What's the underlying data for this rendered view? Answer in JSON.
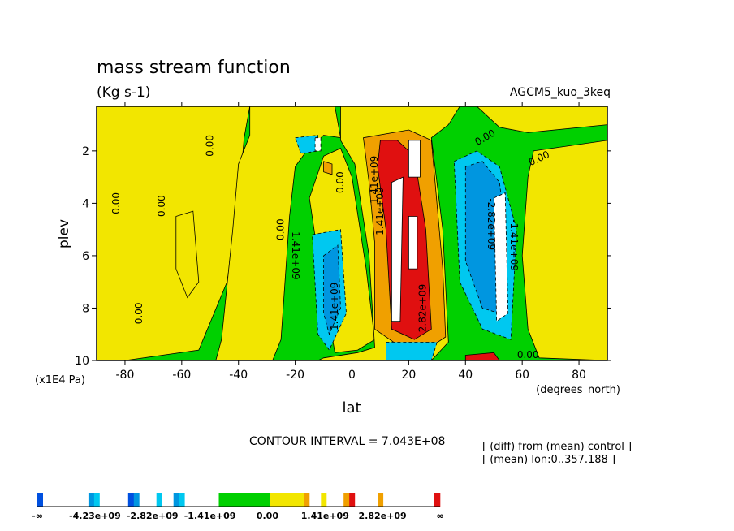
{
  "chart_data": {
    "type": "heatmap",
    "title": "mass stream function",
    "subtitle": "(Kg s-1)",
    "experiment": "AGCM5_kuo_3keq",
    "xlabel": "lat",
    "x_units": "(degrees_north)",
    "ylabel": "plev",
    "y_units": "(x1E4 Pa)",
    "xlim": [
      -90,
      90
    ],
    "ylim": [
      0.3,
      10
    ],
    "y_inverted": true,
    "x_ticks": [
      -80,
      -60,
      -40,
      -20,
      0,
      20,
      40,
      60,
      80
    ],
    "y_ticks": [
      2,
      4,
      6,
      8,
      10
    ],
    "contour_interval_text": "CONTOUR INTERVAL = 7.043E+08",
    "contour_interval": 704300000,
    "notes": [
      "[ (diff) from (mean) control ]",
      "[ (mean) lon:0..357.188 ]"
    ],
    "contour_labels": [
      {
        "text": "0.00",
        "lat": -83,
        "plev": 4.0,
        "rotate": -90
      },
      {
        "text": "0.00",
        "lat": -67,
        "plev": 4.1,
        "rotate": -90
      },
      {
        "text": "0.00",
        "lat": -50,
        "plev": 1.8,
        "rotate": -90
      },
      {
        "text": "0.00",
        "lat": -75,
        "plev": 8.2,
        "rotate": -90
      },
      {
        "text": "0.00",
        "lat": -25,
        "plev": 5.0,
        "rotate": -90
      },
      {
        "text": "1.41e+09",
        "lat": -20,
        "plev": 6.0,
        "rotate": 90
      },
      {
        "text": "0.00",
        "lat": -4,
        "plev": 3.2,
        "rotate": -90
      },
      {
        "text": "-1.41e+09",
        "lat": -6,
        "plev": 8.0,
        "rotate": -90
      },
      {
        "text": "1.41e+09",
        "lat": 10,
        "plev": 4.3,
        "rotate": -90
      },
      {
        "text": "1.41e+09",
        "lat": 8,
        "plev": 3.1,
        "rotate": -90
      },
      {
        "text": "2.82e+09",
        "lat": 25,
        "plev": 8.0,
        "rotate": -90
      },
      {
        "text": "0.00",
        "lat": 47,
        "plev": 1.5,
        "rotate": -30
      },
      {
        "text": "0.00",
        "lat": 66,
        "plev": 2.3,
        "rotate": -25
      },
      {
        "text": "-2.82e+09",
        "lat": 49,
        "plev": 4.8,
        "rotate": 90
      },
      {
        "text": "-1.41e+09",
        "lat": 57,
        "plev": 5.6,
        "rotate": 90
      },
      {
        "text": "0.00",
        "lat": 62,
        "plev": 9.8,
        "rotate": 0
      }
    ],
    "fill_regions": [
      {
        "level": "pos1",
        "color": "#f2e600",
        "points": [
          [
            -90,
            0.3
          ],
          [
            -36,
            0.3
          ],
          [
            -38,
            1.5
          ],
          [
            -40,
            4
          ],
          [
            -44,
            7
          ],
          [
            -54,
            9.6
          ],
          [
            -80,
            10
          ],
          [
            -90,
            10
          ]
        ]
      },
      {
        "level": "pos1",
        "color": "#f2e600",
        "points": [
          [
            -36,
            0.3
          ],
          [
            -6,
            0.3
          ],
          [
            -4,
            1.5
          ],
          [
            -10,
            1.4
          ],
          [
            -16,
            2.0
          ],
          [
            -20,
            2.6
          ],
          [
            -22,
            4.5
          ],
          [
            -25,
            9.2
          ],
          [
            -28,
            10
          ],
          [
            -48,
            10
          ],
          [
            -46,
            9.2
          ],
          [
            -42,
            5
          ],
          [
            -40,
            2.5
          ],
          [
            -36,
            1.4
          ]
        ]
      },
      {
        "level": "pos1",
        "color": "#f2e600",
        "points": [
          [
            -10,
            2.2
          ],
          [
            -4,
            1.9
          ],
          [
            0,
            3.0
          ],
          [
            5,
            6.5
          ],
          [
            8,
            9.2
          ],
          [
            2,
            9.6
          ],
          [
            -6,
            9.7
          ],
          [
            -12,
            6
          ],
          [
            -15,
            3.8
          ]
        ]
      },
      {
        "level": "pos1",
        "color": "#f2e600",
        "points": [
          [
            -4,
            0.3
          ],
          [
            38,
            0.3
          ],
          [
            34,
            1.0
          ],
          [
            28,
            1.5
          ],
          [
            32,
            5
          ],
          [
            34,
            9.3
          ],
          [
            28,
            10
          ],
          [
            -12,
            10
          ],
          [
            -10,
            9.9
          ],
          [
            2,
            9.7
          ],
          [
            8,
            9.5
          ],
          [
            6,
            6
          ],
          [
            1,
            2.5
          ],
          [
            -4,
            1.6
          ]
        ]
      },
      {
        "level": "pos1",
        "color": "#f2e600",
        "points": [
          [
            44,
            0.3
          ],
          [
            90,
            0.3
          ],
          [
            90,
            1.0
          ],
          [
            62,
            1.3
          ],
          [
            52,
            1.1
          ]
        ]
      },
      {
        "level": "pos1",
        "color": "#f2e600",
        "points": [
          [
            64,
            2.0
          ],
          [
            90,
            1.6
          ],
          [
            90,
            10
          ],
          [
            66,
            9.9
          ],
          [
            62,
            8.8
          ],
          [
            60,
            6
          ],
          [
            62,
            3
          ]
        ]
      },
      {
        "level": "pos1",
        "color": "#f2e600",
        "points": [
          [
            -62,
            4.5
          ],
          [
            -56,
            4.3
          ],
          [
            -54,
            7
          ],
          [
            -58,
            7.6
          ],
          [
            -62,
            6.5
          ]
        ]
      },
      {
        "level": "pos2",
        "color": "#f0a000",
        "points": [
          [
            4,
            1.5
          ],
          [
            20,
            1.2
          ],
          [
            28,
            1.6
          ],
          [
            32,
            6.5
          ],
          [
            33,
            9.1
          ],
          [
            26,
            9.6
          ],
          [
            16,
            9.4
          ],
          [
            8,
            8.8
          ],
          [
            8,
            5.5
          ],
          [
            6,
            3.2
          ]
        ]
      },
      {
        "level": "pos2",
        "color": "#f0a000",
        "points": [
          [
            -10,
            2.4
          ],
          [
            -7,
            2.5
          ],
          [
            -7,
            2.9
          ],
          [
            -10,
            2.8
          ]
        ]
      },
      {
        "level": "pos3",
        "color": "#e01010",
        "points": [
          [
            10,
            1.6
          ],
          [
            16,
            1.6
          ],
          [
            22,
            2.2
          ],
          [
            26,
            5
          ],
          [
            28,
            8.8
          ],
          [
            22,
            9.2
          ],
          [
            14,
            8.8
          ],
          [
            12,
            5
          ],
          [
            9,
            2.6
          ]
        ]
      },
      {
        "level": "pos3",
        "color": "#e01010",
        "points": [
          [
            40,
            9.8
          ],
          [
            50,
            9.7
          ],
          [
            52,
            10
          ],
          [
            40,
            10
          ]
        ]
      },
      {
        "level": "pos4",
        "color": "#ffffff",
        "points": [
          [
            14,
            3.2
          ],
          [
            18,
            3.0
          ],
          [
            17,
            8.5
          ],
          [
            14,
            8.5
          ]
        ]
      },
      {
        "level": "pos4",
        "color": "#ffffff",
        "points": [
          [
            20,
            1.6
          ],
          [
            24,
            1.6
          ],
          [
            24,
            3.0
          ],
          [
            20,
            3.0
          ]
        ]
      },
      {
        "level": "pos4",
        "color": "#ffffff",
        "points": [
          [
            20,
            4.5
          ],
          [
            23,
            4.5
          ],
          [
            23,
            6.5
          ],
          [
            20,
            6.5
          ]
        ]
      },
      {
        "level": "neg2",
        "color": "#00c8f0",
        "points": [
          [
            36,
            2.4
          ],
          [
            44,
            2.0
          ],
          [
            52,
            2.6
          ],
          [
            58,
            5
          ],
          [
            56,
            9.2
          ],
          [
            46,
            8.8
          ],
          [
            38,
            7
          ]
        ]
      },
      {
        "level": "neg3",
        "color": "#0096e0",
        "points": [
          [
            40,
            2.6
          ],
          [
            46,
            2.4
          ],
          [
            52,
            3.2
          ],
          [
            54,
            5
          ],
          [
            52,
            8.2
          ],
          [
            46,
            8.0
          ],
          [
            40,
            6.2
          ]
        ]
      },
      {
        "level": "neg4",
        "color": "#ffffff",
        "points": [
          [
            50,
            3.8
          ],
          [
            54,
            3.6
          ],
          [
            55,
            8.2
          ],
          [
            51,
            8.5
          ]
        ]
      },
      {
        "level": "neg2",
        "color": "#00c8f0",
        "points": [
          [
            -14,
            5.2
          ],
          [
            -4,
            5.0
          ],
          [
            -2,
            8.2
          ],
          [
            -8,
            9.6
          ],
          [
            -12,
            9.0
          ]
        ]
      },
      {
        "level": "neg3",
        "color": "#0096e0",
        "points": [
          [
            -10,
            6.0
          ],
          [
            -5,
            5.6
          ],
          [
            -4,
            8.0
          ],
          [
            -8,
            9.0
          ],
          [
            -10,
            8.2
          ]
        ]
      },
      {
        "level": "neg2",
        "color": "#00c8f0",
        "points": [
          [
            -20,
            1.5
          ],
          [
            -12,
            1.4
          ],
          [
            -12,
            2.0
          ],
          [
            -18,
            2.1
          ]
        ]
      },
      {
        "level": "neg4",
        "color": "#ffffff",
        "points": [
          [
            -13,
            1.5
          ],
          [
            -11,
            1.5
          ],
          [
            -11,
            2.0
          ],
          [
            -13,
            2.0
          ]
        ]
      },
      {
        "level": "neg2",
        "color": "#00c8f0",
        "points": [
          [
            12,
            9.3
          ],
          [
            30,
            9.3
          ],
          [
            28,
            10
          ],
          [
            12,
            10
          ]
        ]
      }
    ],
    "colorbar": {
      "labels": [
        "-∞",
        "-4.23e+09",
        "-2.82e+09",
        "-1.41e+09",
        "0.00",
        "1.41e+09",
        "2.82e+09",
        "∞"
      ],
      "values": [
        -4230000000.0,
        -2820000000.0,
        -1410000000.0,
        0,
        1410000000.0,
        2820000000.0
      ],
      "segments": [
        {
          "color": "#0050e0",
          "width": 1
        },
        {
          "color": "#ffffff",
          "width": 8
        },
        {
          "color": "#0096e0",
          "width": 1
        },
        {
          "color": "#00c8f0",
          "width": 1
        },
        {
          "color": "#ffffff",
          "width": 5
        },
        {
          "color": "#0050e0",
          "width": 1
        },
        {
          "color": "#0096e0",
          "width": 1
        },
        {
          "color": "#ffffff",
          "width": 3
        },
        {
          "color": "#00c8f0",
          "width": 1
        },
        {
          "color": "#ffffff",
          "width": 2
        },
        {
          "color": "#0096e0",
          "width": 1
        },
        {
          "color": "#00c8f0",
          "width": 1
        },
        {
          "color": "#ffffff",
          "width": 6
        },
        {
          "color": "#00d000",
          "width": 9
        },
        {
          "color": "#f2e600",
          "width": 6
        },
        {
          "color": "#f0a000",
          "width": 1
        },
        {
          "color": "#ffffff",
          "width": 2
        },
        {
          "color": "#f2e600",
          "width": 1
        },
        {
          "color": "#ffffff",
          "width": 3
        },
        {
          "color": "#f0a000",
          "width": 1
        },
        {
          "color": "#e01010",
          "width": 1
        },
        {
          "color": "#ffffff",
          "width": 4
        },
        {
          "color": "#f0a000",
          "width": 1
        },
        {
          "color": "#ffffff",
          "width": 9
        },
        {
          "color": "#e01010",
          "width": 1
        }
      ]
    },
    "background_color": "#00d000"
  }
}
